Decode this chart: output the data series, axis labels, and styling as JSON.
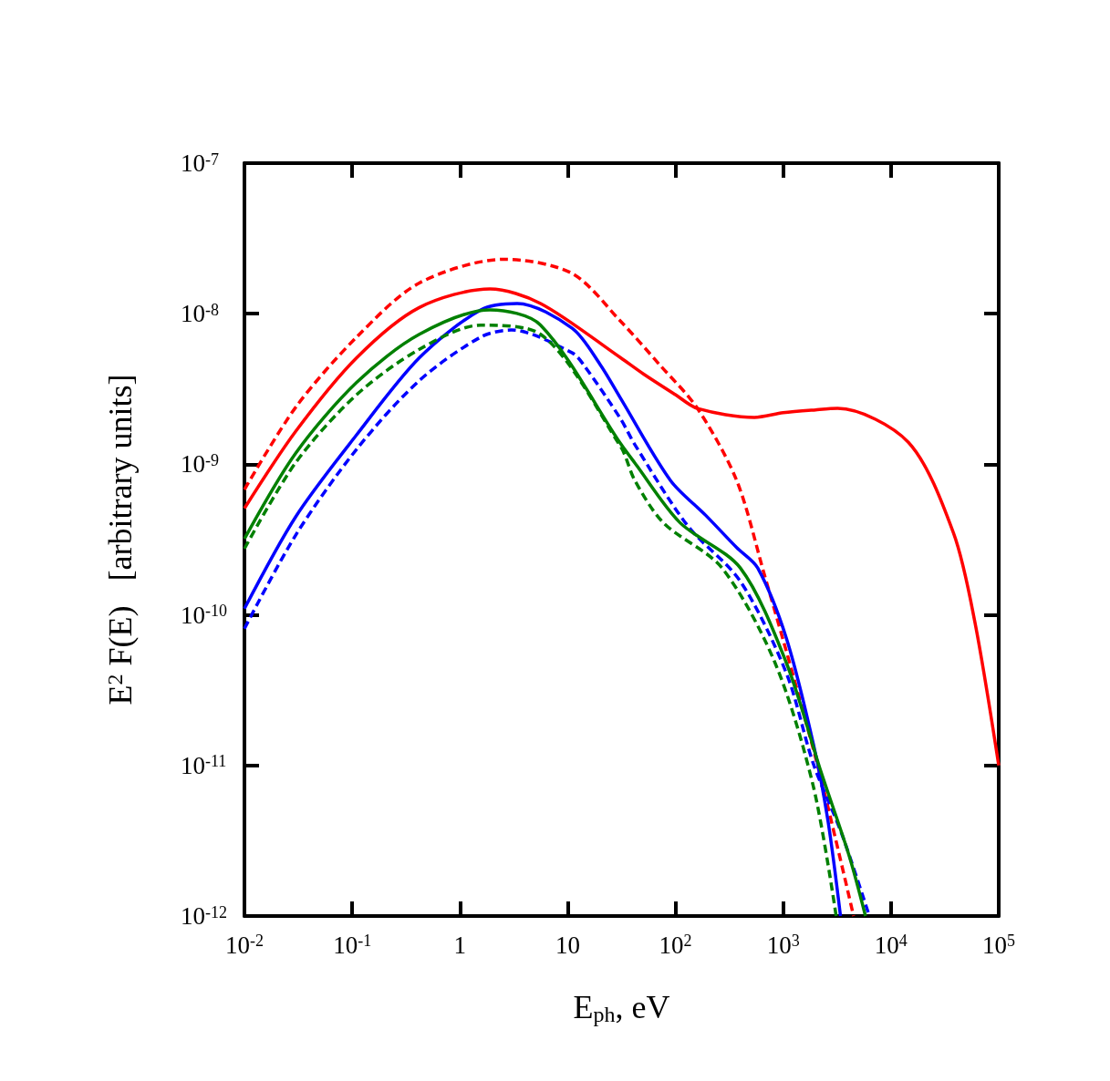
{
  "chart_data": {
    "type": "line",
    "xlabel": "E$_{ph}$, eV",
    "ylabel": "E$^{2}$ F(E)   [arbitrary units]",
    "log": "xy",
    "marker": "none",
    "xlim": [
      0.01,
      100000
    ],
    "ylim": [
      1e-12,
      1e-07
    ],
    "xticks": [
      {
        "value": 0.01,
        "label": "10$^{-2}$"
      },
      {
        "value": 0.1,
        "label": "10$^{-1}$"
      },
      1,
      10,
      {
        "value": 100,
        "label": "10$^{2}$"
      },
      {
        "value": 1000,
        "label": "10$^{3}$"
      },
      {
        "value": 10000,
        "label": "10$^{4}$"
      },
      {
        "value": 100000,
        "label": "10$^{5}$"
      }
    ],
    "yticks": [
      {
        "value": 1e-12,
        "label": "10$^{-12}$"
      },
      {
        "value": 1e-11,
        "label": "10$^{-11}$"
      },
      {
        "value": 1e-10,
        "label": "10$^{-10}$"
      },
      {
        "value": 1e-09,
        "label": "10$^{-9}$"
      },
      {
        "value": 1e-08,
        "label": "10$^{-8}$"
      },
      {
        "value": 1e-07,
        "label": "10$^{-7}$"
      }
    ],
    "series": [
      {
        "color": "#ff0000",
        "line_style": "solid",
        "x": [
          0.01,
          0.03,
          0.11,
          0.42,
          1.9,
          5.6,
          31,
          50,
          100,
          160,
          540,
          1000,
          2000,
          3200,
          14500,
          38000,
          60000,
          100000
        ],
        "values": [
          5.1e-10,
          1.66e-09,
          5.1e-09,
          1.1e-08,
          1.46e-08,
          1.17e-08,
          5.1e-09,
          4e-09,
          2.9e-09,
          2.35e-09,
          2.05e-09,
          2.2e-09,
          2.3e-09,
          2.35e-09,
          1.4e-09,
          3.5e-10,
          9e-11,
          1e-11
        ]
      },
      {
        "color": "#ff0000",
        "line_style": "dashed",
        "x": [
          0.01,
          0.03,
          0.11,
          0.42,
          2.6,
          11,
          31,
          71,
          160,
          370,
          670,
          1220,
          2240,
          4500
        ],
        "values": [
          6.8e-10,
          2.4e-09,
          7e-09,
          1.6e-08,
          2.3e-08,
          1.85e-08,
          8.9e-09,
          4.6e-09,
          2.35e-09,
          7.8e-10,
          1.84e-10,
          4.1e-11,
          8.2e-12,
          1e-12
        ]
      },
      {
        "color": "#0000ff",
        "line_style": "solid",
        "x": [
          0.01,
          0.03,
          0.11,
          0.42,
          1.56,
          3.4,
          11,
          20,
          31,
          90,
          190,
          370,
          580,
          1070,
          1900,
          2600,
          3400
        ],
        "values": [
          1.1e-10,
          4.5e-10,
          1.57e-09,
          5.1e-09,
          1.06e-08,
          1.17e-08,
          8e-09,
          4.6e-09,
          2.74e-09,
          7.8e-10,
          4.6e-10,
          2.8e-10,
          2.05e-10,
          7e-11,
          1.4e-11,
          4.3e-12,
          1e-12
        ]
      },
      {
        "color": "#0000ff",
        "line_style": "dashed",
        "x": [
          0.01,
          0.03,
          0.11,
          0.42,
          1.56,
          3,
          11,
          14,
          31,
          42,
          130,
          400,
          1070,
          1900,
          3500,
          6300
        ],
        "values": [
          8.1e-11,
          3.4e-10,
          1.26e-09,
          3.6e-09,
          7e-09,
          7.8e-09,
          5.5e-09,
          4.6e-09,
          2e-09,
          1.35e-09,
          3.9e-10,
          1.67e-10,
          4.1e-11,
          1.03e-11,
          3.5e-12,
          1e-12
        ]
      },
      {
        "color": "#008000",
        "line_style": "solid",
        "x": [
          0.01,
          0.03,
          0.11,
          0.42,
          1.9,
          5.6,
          31,
          42,
          110,
          400,
          1070,
          2240,
          4100,
          5800
        ],
        "values": [
          3.2e-10,
          1.19e-09,
          3.5e-09,
          7.3e-09,
          1.06e-08,
          8.4e-09,
          1.37e-09,
          1.02e-09,
          4.1e-10,
          2.05e-10,
          4.8e-11,
          9.1e-12,
          2.5e-12,
          1e-12
        ]
      },
      {
        "color": "#008000",
        "line_style": "dashed",
        "x": [
          0.01,
          0.03,
          0.11,
          0.42,
          1.56,
          5.6,
          31,
          42,
          77,
          270,
          840,
          1900,
          3100
        ],
        "values": [
          2.75e-10,
          1.03e-09,
          2.9e-09,
          5.8e-09,
          8.4e-09,
          7.3e-09,
          1.31e-09,
          7.8e-10,
          4.1e-10,
          2.05e-10,
          4.8e-11,
          7.3e-12,
          1e-12
        ]
      }
    ]
  }
}
